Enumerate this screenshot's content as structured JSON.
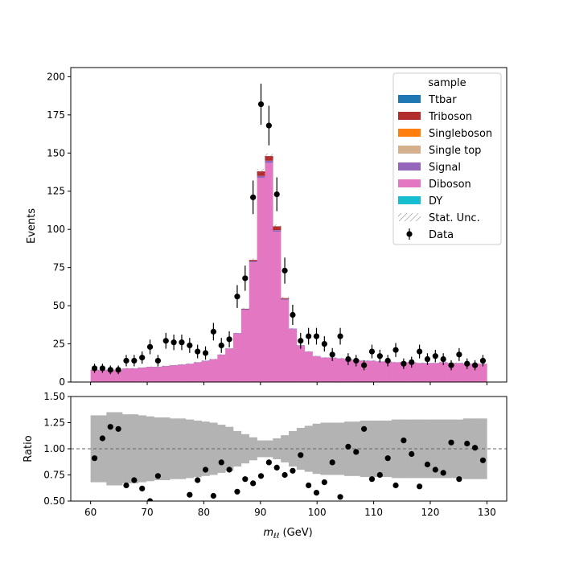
{
  "chart_data": {
    "type": "stacked-histogram-with-ratio",
    "xlabel_main": "m",
    "xlabel_sub": "ℓℓ",
    "xlabel_unit": " (GeV)",
    "ylabel_main": "Events",
    "ylabel_ratio": "Ratio",
    "xlim": [
      56.5,
      133.5
    ],
    "ylim_main": [
      0,
      206
    ],
    "ylim_ratio": [
      0.5,
      1.5
    ],
    "xticks": [
      60,
      70,
      80,
      90,
      100,
      110,
      120,
      130
    ],
    "yticks_main": [
      0,
      25,
      50,
      75,
      100,
      125,
      150,
      175,
      200
    ],
    "yticks_ratio": [
      0.5,
      0.75,
      1.0,
      1.25,
      1.5
    ],
    "ytick_labels_ratio": [
      "0.50",
      "0.75",
      "1.00",
      "1.25",
      "1.50"
    ],
    "ratio_reference": 1.0,
    "bin_edges": [
      60.0,
      61.4,
      62.8,
      64.2,
      65.6,
      67.0,
      68.4,
      69.8,
      71.2,
      72.6,
      74.0,
      75.4,
      76.8,
      78.2,
      79.6,
      81.0,
      82.4,
      83.8,
      85.2,
      86.6,
      88.0,
      89.4,
      90.8,
      92.2,
      93.6,
      95.0,
      96.4,
      97.8,
      99.2,
      100.6,
      102.0,
      103.4,
      104.8,
      106.2,
      107.6,
      109.0,
      110.4,
      111.8,
      113.2,
      114.6,
      116.0,
      117.4,
      118.8,
      120.2,
      121.6,
      123.0,
      124.4,
      125.8,
      127.2,
      128.6,
      130.0
    ],
    "legend": {
      "title": "sample",
      "placement": "top-right",
      "entries": [
        {
          "name": "Ttbar",
          "color": "#1f77b4",
          "kind": "patch"
        },
        {
          "name": "Triboson",
          "color": "#b22c2c",
          "kind": "patch"
        },
        {
          "name": "Singleboson",
          "color": "#ff7f0e",
          "kind": "patch"
        },
        {
          "name": "Single top",
          "color": "#d4b08c",
          "kind": "patch"
        },
        {
          "name": "Signal",
          "color": "#9467bd",
          "kind": "patch"
        },
        {
          "name": "Diboson",
          "color": "#e377c2",
          "kind": "patch"
        },
        {
          "name": "DY",
          "color": "#17becf",
          "kind": "patch"
        },
        {
          "name": "Stat. Unc.",
          "color": "#888888",
          "kind": "hatch"
        },
        {
          "name": "Data",
          "color": "#000000",
          "kind": "errorbar"
        }
      ]
    },
    "series_mc_total": [
      8,
      8,
      8,
      8,
      9,
      9,
      9.5,
      10,
      10,
      10.5,
      11,
      11.5,
      12,
      13,
      14,
      15,
      18,
      22,
      32,
      48,
      80,
      138,
      148,
      102,
      55,
      35,
      24,
      20,
      17,
      16,
      16,
      15.5,
      15,
      14.5,
      14,
      14,
      13.5,
      13.5,
      13,
      13,
      13,
      12.5,
      12.5,
      12.5,
      13,
      12.5,
      12.5,
      12,
      12,
      12
    ],
    "series_signal": [
      0.2,
      0.2,
      0.2,
      0.2,
      0.2,
      0.2,
      0.2,
      0.2,
      0.2,
      0.2,
      0.2,
      0.2,
      0.2,
      0.2,
      0.2,
      0.2,
      0.3,
      0.3,
      0.4,
      0.5,
      0.8,
      1.2,
      1.5,
      1.0,
      0.6,
      0.4,
      0.3,
      0.2,
      0.2,
      0.2,
      0.2,
      0.2,
      0.2,
      0.2,
      0.2,
      0.2,
      0.2,
      0.2,
      0.2,
      0.2,
      0.2,
      0.2,
      0.2,
      0.2,
      0.2,
      0.2,
      0.2,
      0.2,
      0.2,
      0.2
    ],
    "series_triboson": [
      0,
      0,
      0,
      0,
      0,
      0,
      0,
      0,
      0,
      0,
      0,
      0,
      0,
      0,
      0,
      0,
      0,
      0,
      0,
      0.3,
      0.8,
      3,
      3,
      2.5,
      0.6,
      0,
      0,
      0,
      0,
      0,
      0,
      0,
      0,
      0,
      0,
      0,
      0,
      0,
      0,
      0,
      0,
      0,
      0,
      0,
      0,
      0,
      0,
      0,
      0,
      0
    ],
    "data_points": [
      {
        "x": 60.7,
        "y": 9
      },
      {
        "x": 62.1,
        "y": 9
      },
      {
        "x": 63.5,
        "y": 8
      },
      {
        "x": 64.9,
        "y": 8
      },
      {
        "x": 66.3,
        "y": 14
      },
      {
        "x": 67.7,
        "y": 14
      },
      {
        "x": 69.1,
        "y": 16
      },
      {
        "x": 70.5,
        "y": 23
      },
      {
        "x": 71.9,
        "y": 14
      },
      {
        "x": 73.3,
        "y": 27
      },
      {
        "x": 74.7,
        "y": 26
      },
      {
        "x": 76.1,
        "y": 26
      },
      {
        "x": 77.5,
        "y": 24
      },
      {
        "x": 78.9,
        "y": 20
      },
      {
        "x": 80.3,
        "y": 19
      },
      {
        "x": 81.7,
        "y": 33
      },
      {
        "x": 83.1,
        "y": 24
      },
      {
        "x": 84.5,
        "y": 28
      },
      {
        "x": 85.9,
        "y": 56
      },
      {
        "x": 87.3,
        "y": 68
      },
      {
        "x": 88.7,
        "y": 121
      },
      {
        "x": 90.1,
        "y": 182
      },
      {
        "x": 91.5,
        "y": 168
      },
      {
        "x": 92.9,
        "y": 123
      },
      {
        "x": 94.3,
        "y": 73
      },
      {
        "x": 95.7,
        "y": 44
      },
      {
        "x": 97.1,
        "y": 27
      },
      {
        "x": 98.5,
        "y": 30
      },
      {
        "x": 99.9,
        "y": 30
      },
      {
        "x": 101.3,
        "y": 25
      },
      {
        "x": 102.7,
        "y": 18
      },
      {
        "x": 104.1,
        "y": 30
      },
      {
        "x": 105.5,
        "y": 15
      },
      {
        "x": 106.9,
        "y": 14
      },
      {
        "x": 108.3,
        "y": 11
      },
      {
        "x": 109.7,
        "y": 20
      },
      {
        "x": 111.1,
        "y": 17
      },
      {
        "x": 112.5,
        "y": 14
      },
      {
        "x": 113.9,
        "y": 21
      },
      {
        "x": 115.3,
        "y": 12
      },
      {
        "x": 116.7,
        "y": 13
      },
      {
        "x": 118.1,
        "y": 20
      },
      {
        "x": 119.5,
        "y": 15
      },
      {
        "x": 120.9,
        "y": 17
      },
      {
        "x": 122.3,
        "y": 15
      },
      {
        "x": 123.7,
        "y": 11
      },
      {
        "x": 125.1,
        "y": 18
      },
      {
        "x": 126.5,
        "y": 12
      },
      {
        "x": 127.9,
        "y": 11
      },
      {
        "x": 129.3,
        "y": 14
      }
    ],
    "ratio_band_half_width": [
      0.32,
      0.32,
      0.35,
      0.35,
      0.33,
      0.33,
      0.32,
      0.31,
      0.3,
      0.3,
      0.29,
      0.29,
      0.28,
      0.27,
      0.26,
      0.25,
      0.23,
      0.21,
      0.17,
      0.14,
      0.11,
      0.08,
      0.08,
      0.1,
      0.13,
      0.17,
      0.2,
      0.22,
      0.24,
      0.25,
      0.25,
      0.25,
      0.26,
      0.26,
      0.27,
      0.27,
      0.27,
      0.27,
      0.28,
      0.28,
      0.28,
      0.28,
      0.28,
      0.28,
      0.28,
      0.28,
      0.28,
      0.29,
      0.29,
      0.29
    ],
    "ratio_points": [
      {
        "x": 60.7,
        "y": 0.91
      },
      {
        "x": 62.1,
        "y": 1.1
      },
      {
        "x": 63.5,
        "y": 1.21
      },
      {
        "x": 64.9,
        "y": 1.19
      },
      {
        "x": 66.3,
        "y": 0.65
      },
      {
        "x": 67.7,
        "y": 0.7
      },
      {
        "x": 69.1,
        "y": 0.62
      },
      {
        "x": 70.5,
        "y": 0.5
      },
      {
        "x": 71.9,
        "y": 0.74
      },
      {
        "x": 77.5,
        "y": 0.56
      },
      {
        "x": 78.9,
        "y": 0.7
      },
      {
        "x": 80.3,
        "y": 0.8
      },
      {
        "x": 81.7,
        "y": 0.55
      },
      {
        "x": 83.1,
        "y": 0.87
      },
      {
        "x": 84.5,
        "y": 0.8
      },
      {
        "x": 85.9,
        "y": 0.59
      },
      {
        "x": 87.3,
        "y": 0.71
      },
      {
        "x": 88.7,
        "y": 0.67
      },
      {
        "x": 90.1,
        "y": 0.74
      },
      {
        "x": 91.5,
        "y": 0.87
      },
      {
        "x": 92.9,
        "y": 0.82
      },
      {
        "x": 94.3,
        "y": 0.75
      },
      {
        "x": 95.7,
        "y": 0.79
      },
      {
        "x": 97.1,
        "y": 0.94
      },
      {
        "x": 98.5,
        "y": 0.65
      },
      {
        "x": 99.9,
        "y": 0.58
      },
      {
        "x": 101.3,
        "y": 0.68
      },
      {
        "x": 102.7,
        "y": 0.87
      },
      {
        "x": 104.1,
        "y": 0.54
      },
      {
        "x": 105.5,
        "y": 1.02
      },
      {
        "x": 106.9,
        "y": 0.97
      },
      {
        "x": 108.3,
        "y": 1.19
      },
      {
        "x": 109.7,
        "y": 0.71
      },
      {
        "x": 111.1,
        "y": 0.75
      },
      {
        "x": 112.5,
        "y": 0.91
      },
      {
        "x": 113.9,
        "y": 0.65
      },
      {
        "x": 115.3,
        "y": 1.08
      },
      {
        "x": 116.7,
        "y": 0.95
      },
      {
        "x": 118.1,
        "y": 0.64
      },
      {
        "x": 119.5,
        "y": 0.85
      },
      {
        "x": 120.9,
        "y": 0.8
      },
      {
        "x": 122.3,
        "y": 0.77
      },
      {
        "x": 123.7,
        "y": 1.06
      },
      {
        "x": 125.1,
        "y": 0.71
      },
      {
        "x": 126.5,
        "y": 1.05
      },
      {
        "x": 127.9,
        "y": 1.01
      },
      {
        "x": 129.3,
        "y": 0.89
      }
    ]
  }
}
